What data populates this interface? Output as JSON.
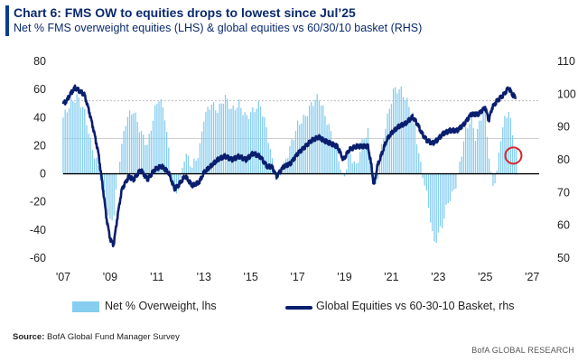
{
  "header": {
    "title": "Chart 6: FMS OW to equities drops to lowest since Jul’25",
    "subtitle": "Net % FMS overweight equities (LHS) & global equities vs 60/30/10 basket (RHS)"
  },
  "footer": {
    "source_label": "Source:",
    "source_text": " BofA Global Fund Manager Survey",
    "brand": "BofA GLOBAL RESEARCH"
  },
  "colors": {
    "bars": "#86cdef",
    "line": "#0a1e6e",
    "highlight_circle": "#d9252b",
    "zero_line": "#000000",
    "grid": "#bfbfbf"
  },
  "chart_data": {
    "type": "bar",
    "title": "Chart 6: FMS OW to equities drops to lowest since Jul’25",
    "x_ticks": [
      "'07",
      "'09",
      "'11",
      "'13",
      "'15",
      "'17",
      "'19",
      "'21",
      "'23",
      "'25",
      "'27"
    ],
    "x_range": [
      2007.0,
      2027.3
    ],
    "left_axis": {
      "ticks": [
        "80",
        "60",
        "40",
        "20",
        "0",
        "-20",
        "-40",
        "-60"
      ],
      "range": [
        -60,
        80
      ]
    },
    "right_axis": {
      "ticks": [
        "110",
        "100",
        "90",
        "80",
        "70",
        "60",
        "50"
      ],
      "range": [
        50,
        110
      ]
    },
    "reference_lines": [
      {
        "axis": "left",
        "value": 52,
        "style": "dotted"
      },
      {
        "axis": "left",
        "value": 25,
        "style": "solid-light"
      }
    ],
    "grid": false,
    "legend_position": "bottom",
    "series": [
      {
        "name": "Net % Overweight, lhs",
        "type": "bar",
        "axis": "left",
        "anchors": [
          [
            2007.0,
            40
          ],
          [
            2007.3,
            50
          ],
          [
            2007.6,
            55
          ],
          [
            2007.9,
            45
          ],
          [
            2008.2,
            20
          ],
          [
            2008.5,
            5
          ],
          [
            2008.8,
            -20
          ],
          [
            2009.0,
            -35
          ],
          [
            2009.15,
            -30
          ],
          [
            2009.4,
            10
          ],
          [
            2009.7,
            40
          ],
          [
            2010.0,
            45
          ],
          [
            2010.3,
            30
          ],
          [
            2010.6,
            20
          ],
          [
            2010.9,
            45
          ],
          [
            2011.1,
            55
          ],
          [
            2011.35,
            40
          ],
          [
            2011.6,
            0
          ],
          [
            2011.8,
            -15
          ],
          [
            2012.0,
            -5
          ],
          [
            2012.2,
            15
          ],
          [
            2012.5,
            5
          ],
          [
            2012.8,
            15
          ],
          [
            2013.0,
            40
          ],
          [
            2013.3,
            50
          ],
          [
            2013.6,
            45
          ],
          [
            2013.9,
            55
          ],
          [
            2014.2,
            45
          ],
          [
            2014.5,
            50
          ],
          [
            2014.8,
            40
          ],
          [
            2015.1,
            45
          ],
          [
            2015.4,
            50
          ],
          [
            2015.7,
            30
          ],
          [
            2015.9,
            10
          ],
          [
            2016.1,
            -5
          ],
          [
            2016.4,
            5
          ],
          [
            2016.7,
            20
          ],
          [
            2017.0,
            35
          ],
          [
            2017.3,
            40
          ],
          [
            2017.6,
            50
          ],
          [
            2017.9,
            55
          ],
          [
            2018.1,
            45
          ],
          [
            2018.4,
            30
          ],
          [
            2018.7,
            15
          ],
          [
            2018.95,
            -5
          ],
          [
            2019.2,
            15
          ],
          [
            2019.5,
            5
          ],
          [
            2019.8,
            25
          ],
          [
            2020.0,
            30
          ],
          [
            2020.2,
            -5
          ],
          [
            2020.35,
            -10
          ],
          [
            2020.5,
            10
          ],
          [
            2020.7,
            30
          ],
          [
            2020.9,
            45
          ],
          [
            2021.1,
            60
          ],
          [
            2021.4,
            60
          ],
          [
            2021.7,
            50
          ],
          [
            2021.95,
            40
          ],
          [
            2022.2,
            10
          ],
          [
            2022.45,
            -10
          ],
          [
            2022.65,
            -30
          ],
          [
            2022.8,
            -50
          ],
          [
            2022.95,
            -45
          ],
          [
            2023.2,
            -35
          ],
          [
            2023.4,
            -20
          ],
          [
            2023.6,
            -15
          ],
          [
            2023.8,
            -5
          ],
          [
            2023.95,
            10
          ],
          [
            2024.15,
            30
          ],
          [
            2024.4,
            40
          ],
          [
            2024.6,
            25
          ],
          [
            2024.8,
            40
          ],
          [
            2025.0,
            45
          ],
          [
            2025.15,
            15
          ],
          [
            2025.3,
            -10
          ],
          [
            2025.5,
            0
          ],
          [
            2025.65,
            25
          ],
          [
            2025.85,
            40
          ],
          [
            2026.0,
            45
          ],
          [
            2026.15,
            30
          ],
          [
            2026.3,
            15
          ]
        ]
      },
      {
        "name": "Global Equities vs 60-30-10 Basket, rhs",
        "type": "line",
        "axis": "right",
        "anchors": [
          [
            2007.0,
            97
          ],
          [
            2007.15,
            98
          ],
          [
            2007.3,
            100
          ],
          [
            2007.5,
            102
          ],
          [
            2007.7,
            101
          ],
          [
            2007.9,
            100
          ],
          [
            2008.1,
            95
          ],
          [
            2008.3,
            89
          ],
          [
            2008.5,
            82
          ],
          [
            2008.7,
            71
          ],
          [
            2008.85,
            62
          ],
          [
            2009.0,
            56
          ],
          [
            2009.15,
            54
          ],
          [
            2009.3,
            62
          ],
          [
            2009.5,
            71
          ],
          [
            2009.8,
            75
          ],
          [
            2010.0,
            74
          ],
          [
            2010.3,
            77
          ],
          [
            2010.6,
            74
          ],
          [
            2010.9,
            77
          ],
          [
            2011.2,
            78
          ],
          [
            2011.5,
            76
          ],
          [
            2011.75,
            71
          ],
          [
            2011.9,
            72
          ],
          [
            2012.2,
            75
          ],
          [
            2012.5,
            72
          ],
          [
            2012.8,
            73
          ],
          [
            2013.0,
            76
          ],
          [
            2013.3,
            78
          ],
          [
            2013.6,
            80
          ],
          [
            2013.9,
            81
          ],
          [
            2014.2,
            80
          ],
          [
            2014.5,
            81
          ],
          [
            2014.8,
            80
          ],
          [
            2015.1,
            82
          ],
          [
            2015.4,
            81
          ],
          [
            2015.7,
            78
          ],
          [
            2015.9,
            78
          ],
          [
            2016.1,
            75
          ],
          [
            2016.4,
            78
          ],
          [
            2016.7,
            79
          ],
          [
            2017.0,
            82
          ],
          [
            2017.3,
            84
          ],
          [
            2017.6,
            86
          ],
          [
            2017.9,
            87
          ],
          [
            2018.1,
            86
          ],
          [
            2018.4,
            85
          ],
          [
            2018.7,
            84
          ],
          [
            2018.95,
            80
          ],
          [
            2019.2,
            83
          ],
          [
            2019.5,
            84
          ],
          [
            2019.8,
            84
          ],
          [
            2020.0,
            84
          ],
          [
            2020.15,
            78
          ],
          [
            2020.25,
            72
          ],
          [
            2020.4,
            78
          ],
          [
            2020.6,
            82
          ],
          [
            2020.8,
            86
          ],
          [
            2021.0,
            88
          ],
          [
            2021.3,
            90
          ],
          [
            2021.6,
            91
          ],
          [
            2021.9,
            93
          ],
          [
            2022.1,
            91
          ],
          [
            2022.3,
            88
          ],
          [
            2022.5,
            86
          ],
          [
            2022.75,
            85
          ],
          [
            2022.95,
            86
          ],
          [
            2023.2,
            88
          ],
          [
            2023.5,
            89
          ],
          [
            2023.8,
            89
          ],
          [
            2024.1,
            91
          ],
          [
            2024.4,
            94
          ],
          [
            2024.7,
            94
          ],
          [
            2025.0,
            96
          ],
          [
            2025.15,
            92
          ],
          [
            2025.3,
            96
          ],
          [
            2025.5,
            98
          ],
          [
            2025.8,
            100
          ],
          [
            2026.0,
            102
          ],
          [
            2026.15,
            100
          ],
          [
            2026.3,
            99
          ]
        ]
      }
    ],
    "annotations": [
      {
        "type": "circle",
        "x": 2026.2,
        "y_left": 13,
        "color": "#d9252b"
      }
    ]
  }
}
